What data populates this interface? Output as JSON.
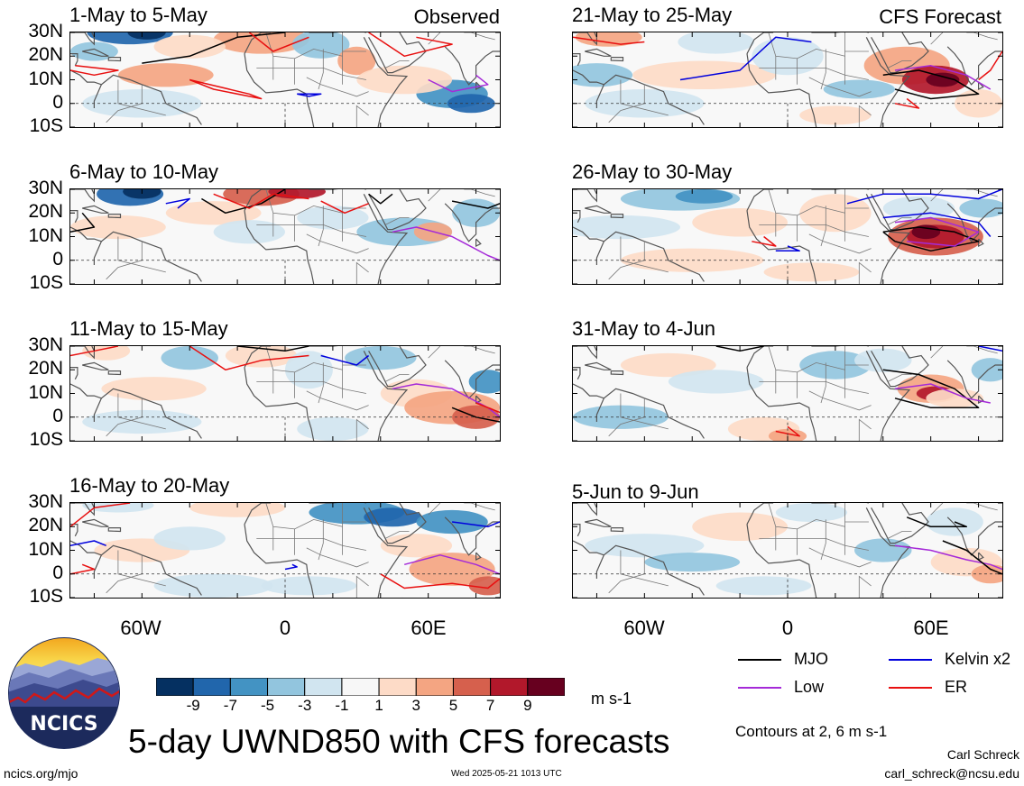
{
  "chart_data": {
    "type": "heatmap",
    "title": "5-day UWND850 with CFS forecasts",
    "variable": "UWND850",
    "units": "m s-1",
    "colorbar": {
      "ticks": [
        "-9",
        "-7",
        "-5",
        "-3",
        "-1",
        "1",
        "3",
        "5",
        "7",
        "9"
      ],
      "colors": [
        "#053061",
        "#2166ac",
        "#4393c3",
        "#92c5de",
        "#d1e5f0",
        "#f7f7f7",
        "#fddbc7",
        "#f4a582",
        "#d6604d",
        "#b2182b",
        "#67001f"
      ]
    },
    "lat_ticks": [
      "30N",
      "20N",
      "10N",
      "0",
      "10S"
    ],
    "lon_ticks": [
      "60W",
      "0",
      "60E"
    ],
    "lat_range": [
      -10,
      30
    ],
    "lon_range": [
      -90,
      90
    ],
    "contour_note": "Contours at 2, 6 m s-1",
    "legend": [
      {
        "label": "MJO",
        "color": "#000000"
      },
      {
        "label": "Kelvin x2",
        "color": "#0000dd"
      },
      {
        "label": "Low",
        "color": "#a52ad8"
      },
      {
        "label": "ER",
        "color": "#e81010"
      }
    ],
    "column_labels": {
      "observed": "Observed",
      "forecast": "CFS Forecast"
    },
    "panels": [
      {
        "period": "1-May to 5-May",
        "source": "Observed"
      },
      {
        "period": "21-May to 25-May",
        "source": "CFS Forecast"
      },
      {
        "period": "6-May to 10-May"
      },
      {
        "period": "26-May to 30-May"
      },
      {
        "period": "11-May to 15-May"
      },
      {
        "period": "31-May to 4-Jun"
      },
      {
        "period": "16-May to 20-May"
      },
      {
        "period": "5-Jun to 9-Jun"
      }
    ]
  },
  "footer": {
    "logo_text": "NCICS",
    "url": "ncics.org/mjo",
    "timestamp": "Wed 2025-05-21 1013 UTC",
    "author": "Carl Schreck",
    "email": "carl_schreck@ncsu.edu"
  }
}
